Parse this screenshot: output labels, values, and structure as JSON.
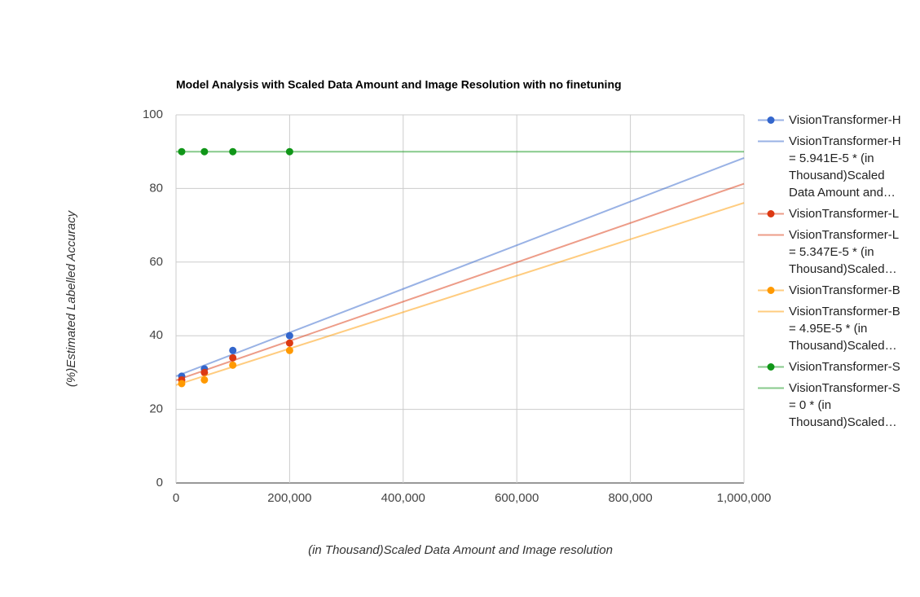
{
  "chart_data": {
    "type": "scatter",
    "title": "Model Analysis with Scaled Data Amount and Image Resolution with no finetuning",
    "x_label": "(in Thousand)Scaled Data Amount and Image resolution",
    "y_label": "(%)Estimated Labelled Accuracy",
    "xlim": [
      0,
      1000000
    ],
    "ylim": [
      0,
      100
    ],
    "xticks": [
      0,
      {
        "value": 200000,
        "label": "200,000"
      },
      {
        "value": 400000,
        "label": "400,000"
      },
      {
        "value": 600000,
        "label": "600,000"
      },
      {
        "value": 800000,
        "label": "800,000"
      },
      {
        "value": 1000000,
        "label": "1,000,000"
      }
    ],
    "yticks": [
      0,
      20,
      40,
      60,
      80,
      100
    ],
    "grid": true,
    "legend": "right",
    "series": [
      {
        "name": "VisionTransformer-H",
        "color": "#3366cc",
        "mode": "markers",
        "x": [
          10000,
          50000,
          100000,
          200000
        ],
        "values": [
          29,
          31,
          36,
          40
        ]
      },
      {
        "name": "VisionTransformer-H = 5.941E-5 * (in Thousand)Scaled Data Amount and…",
        "color": "#3366cc",
        "mode": "line",
        "x": [
          0,
          1000000
        ],
        "values": [
          29,
          88.3
        ]
      },
      {
        "name": "VisionTransformer-L",
        "color": "#dc3912",
        "mode": "markers",
        "x": [
          10000,
          50000,
          100000,
          200000
        ],
        "values": [
          28,
          30,
          34,
          38
        ]
      },
      {
        "name": "VisionTransformer-L = 5.347E-5 * (in Thousand)Scaled…",
        "color": "#dc3912",
        "mode": "line",
        "x": [
          0,
          1000000
        ],
        "values": [
          27.9,
          81.3
        ]
      },
      {
        "name": "VisionTransformer-B",
        "color": "#ff9900",
        "mode": "markers",
        "x": [
          10000,
          50000,
          100000,
          200000
        ],
        "values": [
          27,
          28,
          32,
          36
        ]
      },
      {
        "name": "VisionTransformer-B = 4.95E-5 * (in Thousand)Scaled…",
        "color": "#ff9900",
        "mode": "line",
        "x": [
          0,
          1000000
        ],
        "values": [
          26.6,
          76.1
        ]
      },
      {
        "name": "VisionTransformer-S",
        "color": "#109618",
        "mode": "markers",
        "x": [
          10000,
          50000,
          100000,
          200000
        ],
        "values": [
          90,
          90,
          90,
          90
        ]
      },
      {
        "name": "VisionTransformer-S = 0 * (in Thousand)Scaled…",
        "color": "#109618",
        "mode": "line",
        "x": [
          0,
          1000000
        ],
        "values": [
          90,
          90
        ]
      }
    ]
  }
}
